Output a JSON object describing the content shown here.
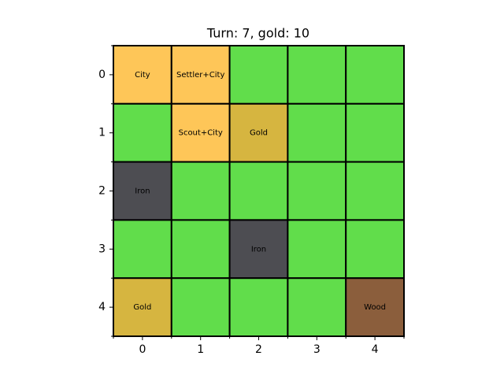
{
  "title": "Turn: 7, gold: 10",
  "x_ticks": [
    0,
    1,
    2,
    3,
    4
  ],
  "y_ticks": [
    0,
    1,
    2,
    3,
    4
  ],
  "board": {
    "rows": [
      [
        {
          "label": "City",
          "color": "#fec658"
        },
        {
          "label": "Settler+City",
          "color": "#fec658"
        },
        {
          "color": "#61dd4b"
        },
        {
          "color": "#61dd4b"
        },
        {
          "color": "#61dd4b"
        }
      ],
      [
        {
          "color": "#61dd4b"
        },
        {
          "label": "Scout+City",
          "color": "#fec658"
        },
        {
          "label": "Gold",
          "color": "#d6b540"
        },
        {
          "color": "#61dd4b"
        },
        {
          "color": "#61dd4b"
        }
      ],
      [
        {
          "label": "Iron",
          "color": "#4d4d52"
        },
        {
          "color": "#61dd4b"
        },
        {
          "color": "#61dd4b"
        },
        {
          "color": "#61dd4b"
        },
        {
          "color": "#61dd4b"
        }
      ],
      [
        {
          "color": "#61dd4b"
        },
        {
          "color": "#61dd4b"
        },
        {
          "label": "Iron",
          "color": "#4d4d52"
        },
        {
          "color": "#61dd4b"
        },
        {
          "color": "#61dd4b"
        }
      ],
      [
        {
          "label": "Gold",
          "color": "#d6b540"
        },
        {
          "color": "#61dd4b"
        },
        {
          "color": "#61dd4b"
        },
        {
          "color": "#61dd4b"
        },
        {
          "label": "Wood",
          "color": "#8b5e3c"
        }
      ]
    ]
  }
}
